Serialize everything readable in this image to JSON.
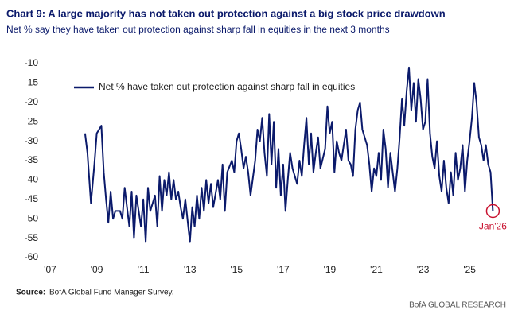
{
  "chart_data": {
    "type": "line",
    "title": "Chart 9: A large majority has not taken out protection against a big stock price drawdown",
    "subtitle": "Net % say they have taken out protection against sharp fall in equities in the next 3 months",
    "x": [
      2008.5,
      2008.6,
      2008.75,
      2008.9,
      2009.0,
      2009.1,
      2009.2,
      2009.3,
      2009.4,
      2009.5,
      2009.6,
      2009.7,
      2009.8,
      2010.0,
      2010.1,
      2010.2,
      2010.3,
      2010.4,
      2010.5,
      2010.6,
      2010.7,
      2010.8,
      2010.9,
      2011.0,
      2011.1,
      2011.2,
      2011.3,
      2011.5,
      2011.6,
      2011.7,
      2011.8,
      2011.9,
      2012.0,
      2012.1,
      2012.2,
      2012.3,
      2012.4,
      2012.5,
      2012.6,
      2012.7,
      2012.8,
      2013.0,
      2013.1,
      2013.2,
      2013.3,
      2013.4,
      2013.5,
      2013.6,
      2013.7,
      2013.8,
      2013.9,
      2014.0,
      2014.2,
      2014.3,
      2014.4,
      2014.5,
      2014.6,
      2014.8,
      2014.9,
      2015.0,
      2015.1,
      2015.2,
      2015.3,
      2015.4,
      2015.5,
      2015.6,
      2015.8,
      2015.9,
      2016.0,
      2016.1,
      2016.2,
      2016.3,
      2016.4,
      2016.5,
      2016.6,
      2016.7,
      2016.8,
      2016.9,
      2017.0,
      2017.1,
      2017.2,
      2017.3,
      2017.4,
      2017.6,
      2017.7,
      2017.8,
      2017.9,
      2018.0,
      2018.1,
      2018.2,
      2018.3,
      2018.4,
      2018.5,
      2018.6,
      2018.8,
      2018.9,
      2019.0,
      2019.1,
      2019.2,
      2019.3,
      2019.4,
      2019.5,
      2019.7,
      2019.8,
      2019.9,
      2020.0,
      2020.1,
      2020.2,
      2020.3,
      2020.4,
      2020.6,
      2020.7,
      2020.8,
      2020.9,
      2021.0,
      2021.1,
      2021.2,
      2021.3,
      2021.4,
      2021.5,
      2021.6,
      2021.7,
      2021.8,
      2021.9,
      2022.0,
      2022.1,
      2022.2,
      2022.3,
      2022.4,
      2022.5,
      2022.6,
      2022.7,
      2022.8,
      2022.9,
      2023.0,
      2023.1,
      2023.2,
      2023.3,
      2023.4,
      2023.5,
      2023.6,
      2023.7,
      2023.8,
      2023.9,
      2024.0,
      2024.1,
      2024.2,
      2024.3,
      2024.4,
      2024.5,
      2024.6,
      2024.7,
      2024.8,
      2024.9,
      2025.0,
      2025.1,
      2025.2,
      2025.3,
      2025.4,
      2025.5,
      2025.6,
      2025.7,
      2025.8,
      2025.9,
      2026.0
    ],
    "series": [
      {
        "name": "Net % have taken out protection against sharp fall in equities",
        "color": "#0b1a6b",
        "values": [
          -28,
          -33,
          -46,
          -36,
          -28,
          -27,
          -26,
          -38,
          -45,
          -51,
          -43,
          -50,
          -48,
          -48,
          -50,
          -42,
          -47,
          -52,
          -43,
          -55,
          -44,
          -48,
          -52,
          -45,
          -56,
          -42,
          -48,
          -44,
          -52,
          -39,
          -48,
          -40,
          -44,
          -38,
          -45,
          -40,
          -45,
          -43,
          -47,
          -50,
          -45,
          -56,
          -47,
          -52,
          -44,
          -50,
          -42,
          -48,
          -40,
          -46,
          -41,
          -47,
          -40,
          -45,
          -36,
          -48,
          -38,
          -35,
          -38,
          -30,
          -28,
          -32,
          -37,
          -34,
          -38,
          -44,
          -35,
          -27,
          -30,
          -24,
          -33,
          -39,
          -23,
          -36,
          -25,
          -42,
          -32,
          -44,
          -36,
          -48,
          -40,
          -33,
          -37,
          -41,
          -35,
          -39,
          -31,
          -24,
          -36,
          -28,
          -38,
          -33,
          -29,
          -37,
          -32,
          -21,
          -28,
          -25,
          -38,
          -30,
          -33,
          -35,
          -27,
          -35,
          -36,
          -39,
          -27,
          -22,
          -20,
          -27,
          -31,
          -36,
          -43,
          -37,
          -39,
          -33,
          -40,
          -27,
          -32,
          -42,
          -33,
          -38,
          -43,
          -37,
          -29,
          -19,
          -26,
          -17,
          -11,
          -22,
          -15,
          -25,
          -14,
          -19,
          -27,
          -25,
          -14,
          -28,
          -34,
          -37,
          -30,
          -39,
          -43,
          -35,
          -42,
          -46,
          -38,
          -44,
          -33,
          -40,
          -37,
          -31,
          -43,
          -35,
          -30,
          -24,
          -15,
          -20,
          -29,
          -31,
          -35,
          -31,
          -36,
          -38,
          -48
        ]
      }
    ],
    "xlim": [
      2007,
      2026.6
    ],
    "xticks": [
      {
        "value": 2007,
        "label": "'07"
      },
      {
        "value": 2009,
        "label": "'09"
      },
      {
        "value": 2011,
        "label": "'11"
      },
      {
        "value": 2013,
        "label": "'13"
      },
      {
        "value": 2015,
        "label": "'15"
      },
      {
        "value": 2017,
        "label": "'17"
      },
      {
        "value": 2019,
        "label": "'19"
      },
      {
        "value": 2021,
        "label": "'21"
      },
      {
        "value": 2023,
        "label": "'23"
      },
      {
        "value": 2025,
        "label": "'25"
      }
    ],
    "ylim": [
      -60,
      -10
    ],
    "yticks": [
      -10,
      -15,
      -20,
      -25,
      -30,
      -35,
      -40,
      -45,
      -50,
      -55,
      -60
    ],
    "annotation": "Jan'26",
    "source_label": "Source:",
    "source": "BofA Global Fund Manager Survey.",
    "footer": "BofA GLOBAL RESEARCH"
  }
}
